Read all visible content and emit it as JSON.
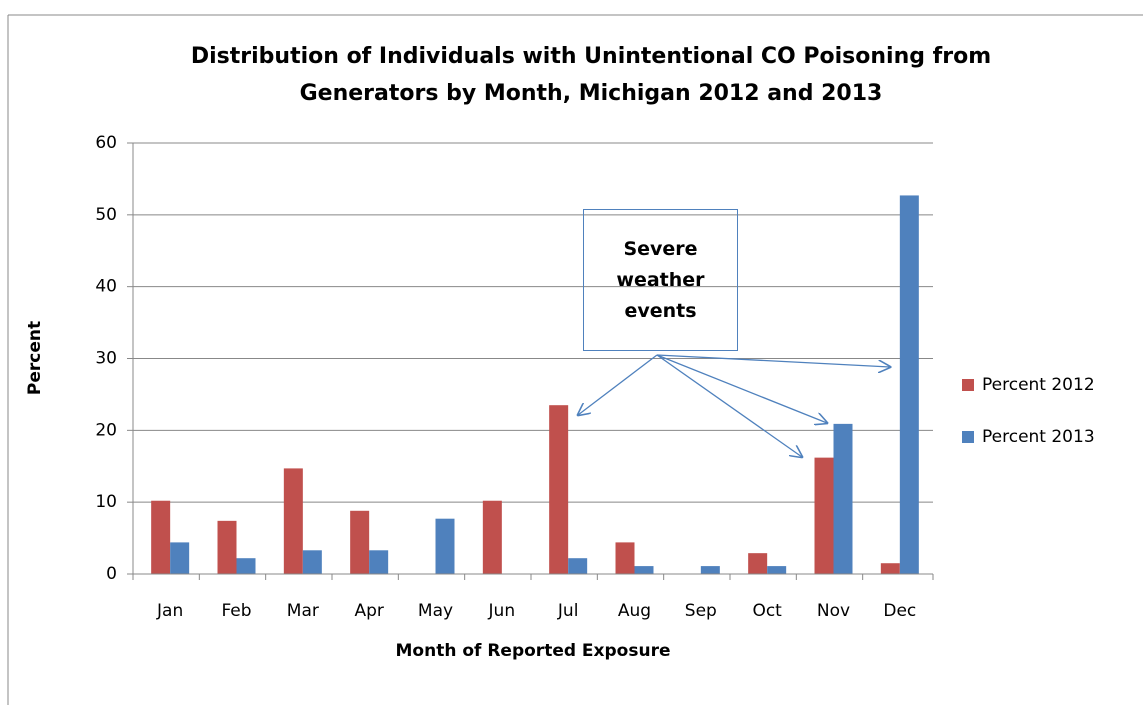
{
  "chart_data": {
    "type": "bar",
    "title": "Distribution of Individuals with Unintentional CO Poisoning from Generators by Month, Michigan 2012 and 2013",
    "x_label": "Month of Reported Exposure",
    "y_label": "Percent",
    "annotation": "Severe weather events",
    "categories": [
      "Jan",
      "Feb",
      "Mar",
      "Apr",
      "May",
      "Jun",
      "Jul",
      "Aug",
      "Sep",
      "Oct",
      "Nov",
      "Dec"
    ],
    "series": [
      {
        "name": "Percent 2012",
        "color": "#c0504d",
        "values": [
          10.2,
          7.4,
          14.7,
          8.8,
          0,
          10.2,
          23.5,
          4.4,
          0,
          2.9,
          16.2,
          1.5
        ]
      },
      {
        "name": "Percent 2013",
        "color": "#4f81bd",
        "values": [
          4.4,
          2.2,
          3.3,
          3.3,
          7.7,
          0,
          2.2,
          1.1,
          1.1,
          1.1,
          20.9,
          52.7
        ]
      }
    ],
    "ylim": [
      0,
      60
    ],
    "yticks": [
      0,
      10,
      20,
      30,
      40,
      50,
      60
    ],
    "grid": true,
    "legend": "right"
  }
}
